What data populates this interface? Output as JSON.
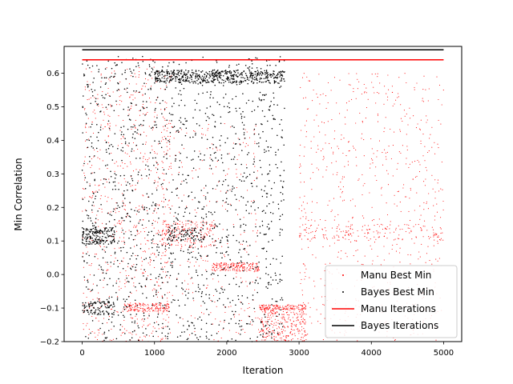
{
  "chart_data": {
    "type": "scatter",
    "xlabel": "Iteration",
    "ylabel": "Min Correlation",
    "xlim": [
      -250,
      5250
    ],
    "ylim": [
      -0.2,
      0.68
    ],
    "xticks": [
      0,
      1000,
      2000,
      3000,
      4000,
      5000
    ],
    "yticks": [
      -0.2,
      -0.1,
      0.0,
      0.1,
      0.2,
      0.3,
      0.4,
      0.5,
      0.6
    ],
    "xtick_labels": [
      "0",
      "1000",
      "2000",
      "3000",
      "4000",
      "5000"
    ],
    "ytick_labels": [
      "−0.2",
      "−0.1",
      "0.0",
      "0.1",
      "0.2",
      "0.3",
      "0.4",
      "0.5",
      "0.6"
    ],
    "legend_position": "lower-right",
    "series": [
      {
        "name": "Manu Best Min",
        "kind": "scatter",
        "color": "#ff0000",
        "clusters": [
          {
            "x": [
              0,
              1250
            ],
            "y": [
              -0.2,
              0.62
            ],
            "n": 700
          },
          {
            "x": [
              560,
              1200
            ],
            "y": [
              -0.11,
              -0.085
            ],
            "n": 160
          },
          {
            "x": [
              1100,
              1850
            ],
            "y": [
              0.08,
              0.16
            ],
            "n": 200
          },
          {
            "x": [
              1000,
              2450
            ],
            "y": [
              -0.2,
              0.45
            ],
            "n": 300
          },
          {
            "x": [
              1800,
              2450
            ],
            "y": [
              0.01,
              0.035
            ],
            "n": 180
          },
          {
            "x": [
              2450,
              3100
            ],
            "y": [
              -0.2,
              -0.1
            ],
            "n": 300
          },
          {
            "x": [
              2450,
              3100
            ],
            "y": [
              -0.105,
              -0.09
            ],
            "n": 140
          },
          {
            "x": [
              3000,
              5000
            ],
            "y": [
              -0.2,
              0.6
            ],
            "n": 700
          },
          {
            "x": [
              3000,
              5000
            ],
            "y": [
              0.1,
              0.15
            ],
            "n": 160
          }
        ]
      },
      {
        "name": "Bayes Best Min",
        "kind": "scatter",
        "color": "#000000",
        "clusters": [
          {
            "x": [
              0,
              2800
            ],
            "y": [
              -0.2,
              0.65
            ],
            "n": 1400
          },
          {
            "x": [
              0,
              450
            ],
            "y": [
              0.09,
              0.14
            ],
            "n": 170
          },
          {
            "x": [
              0,
              450
            ],
            "y": [
              -0.12,
              -0.08
            ],
            "n": 90
          },
          {
            "x": [
              1000,
              2800
            ],
            "y": [
              0.57,
              0.61
            ],
            "n": 500
          },
          {
            "x": [
              1150,
              1700
            ],
            "y": [
              0.1,
              0.14
            ],
            "n": 80
          }
        ]
      },
      {
        "name": "Manu Iterations",
        "kind": "hline",
        "color": "#ff0000",
        "y": 0.64,
        "x": [
          0,
          5000
        ]
      },
      {
        "name": "Bayes Iterations",
        "kind": "hline",
        "color": "#000000",
        "y": 0.67,
        "x": [
          0,
          5000
        ]
      }
    ]
  }
}
